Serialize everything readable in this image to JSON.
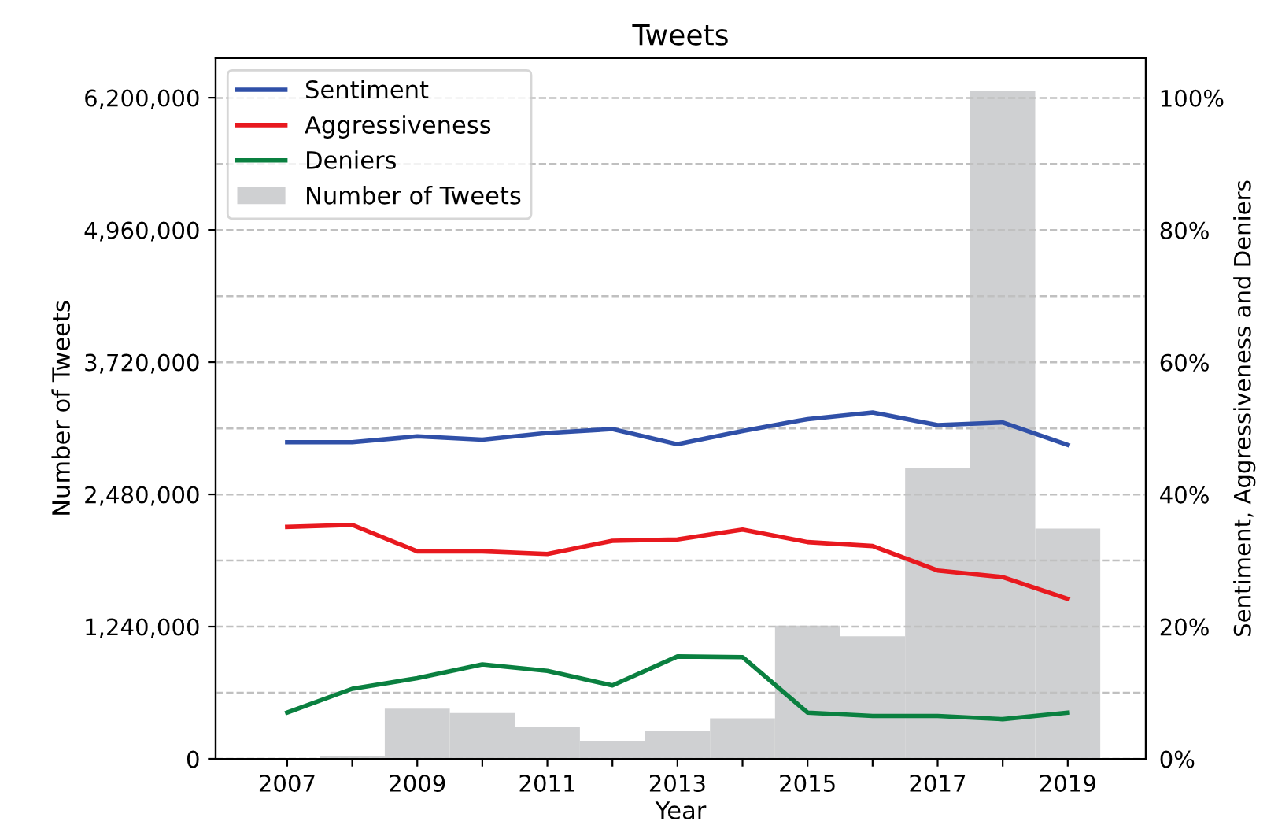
{
  "chart_data": {
    "type": "line",
    "title": "Tweets",
    "xlabel": "Year",
    "ylabel": "Number of Tweets",
    "y2label": "Sentiment, Aggressiveness and Deniers",
    "x": [
      2007,
      2008,
      2009,
      2010,
      2011,
      2012,
      2013,
      2014,
      2015,
      2016,
      2017,
      2018,
      2019
    ],
    "series": [
      {
        "name": "Sentiment",
        "color": "#3050a8",
        "axis": "y2",
        "values": [
          47.9,
          47.9,
          48.8,
          48.3,
          49.3,
          49.9,
          47.6,
          49.6,
          51.4,
          52.4,
          50.5,
          50.9,
          47.5
        ]
      },
      {
        "name": "Aggressiveness",
        "color": "#e8191f",
        "axis": "y2",
        "values": [
          35.1,
          35.4,
          31.4,
          31.4,
          31.0,
          33.0,
          33.2,
          34.7,
          32.8,
          32.2,
          28.5,
          27.5,
          24.2
        ]
      },
      {
        "name": "Deniers",
        "color": "#0a8040",
        "axis": "y2",
        "values": [
          7.0,
          10.6,
          12.2,
          14.3,
          13.3,
          11.1,
          15.5,
          15.4,
          7.0,
          6.5,
          6.5,
          6.0,
          7.0
        ]
      },
      {
        "name": "Number of Tweets",
        "type": "bar",
        "color": "#cfd0d2",
        "axis": "y",
        "x": [
          2008,
          2009,
          2010,
          2011,
          2012,
          2013,
          2014,
          2015,
          2016,
          2017,
          2018,
          2019
        ],
        "values": [
          30000,
          470000,
          430000,
          300000,
          170000,
          260000,
          380000,
          1250000,
          1150000,
          2730000,
          6260000,
          2160000
        ]
      }
    ],
    "xlim": [
      2005.9,
      2020.2
    ],
    "xticks": [
      2007,
      {
        "value": 2008,
        "label": null
      },
      2009,
      {
        "value": 2010,
        "label": null
      },
      2011,
      {
        "value": 2012,
        "label": null
      },
      2013,
      {
        "value": 2014,
        "label": null
      },
      2015,
      {
        "value": 2016,
        "label": null
      },
      2017,
      {
        "value": 2018,
        "label": null
      },
      2019
    ],
    "ylim": [
      0,
      6570000
    ],
    "yticks": [
      {
        "value": 0,
        "label": "0"
      },
      {
        "value": 1240000,
        "label": "1,240,000"
      },
      {
        "value": 2480000,
        "label": "2,480,000"
      },
      {
        "value": 3720000,
        "label": "3,720,000"
      },
      {
        "value": 4960000,
        "label": "4,960,000"
      },
      {
        "value": 6200000,
        "label": "6,200,000"
      }
    ],
    "y2lim": [
      0,
      106
    ],
    "y2ticks": [
      {
        "value": 0,
        "label": "0%"
      },
      {
        "value": 10,
        "label": null
      },
      {
        "value": 20,
        "label": "20%"
      },
      {
        "value": 30,
        "label": null
      },
      {
        "value": 40,
        "label": "40%"
      },
      {
        "value": 50,
        "label": null
      },
      {
        "value": 60,
        "label": "60%"
      },
      {
        "value": 70,
        "label": null
      },
      {
        "value": 80,
        "label": "80%"
      },
      {
        "value": 90,
        "label": null
      },
      {
        "value": 100,
        "label": "100%"
      }
    ],
    "grid": "y",
    "legend": "top left"
  }
}
